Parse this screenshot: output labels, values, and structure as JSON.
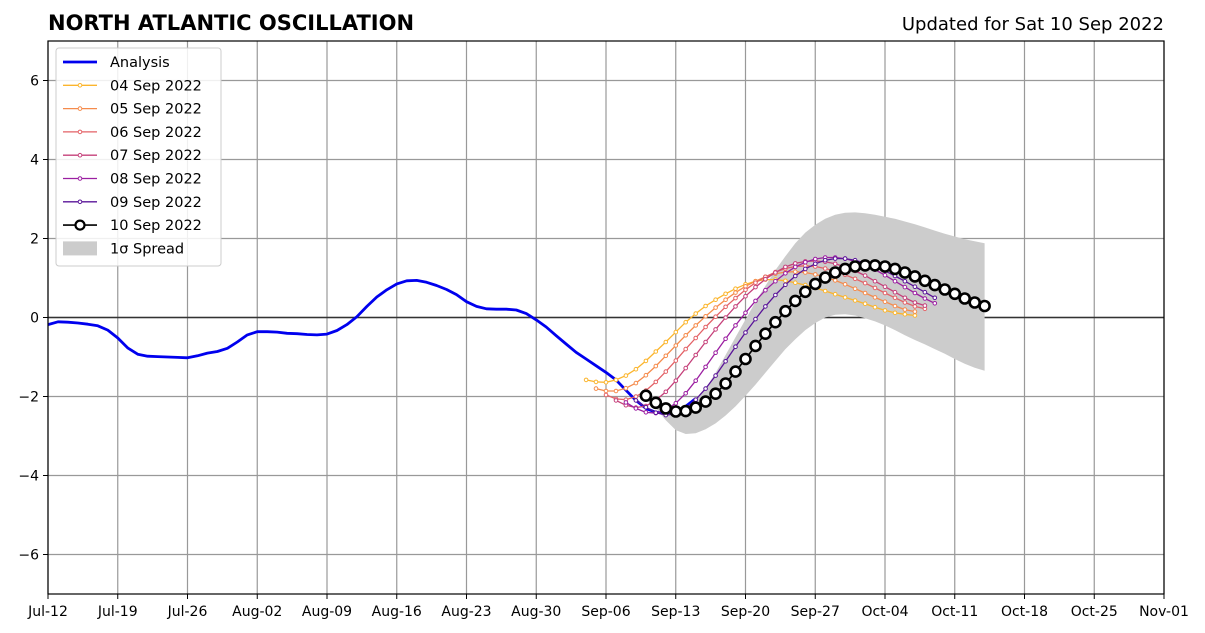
{
  "title": "NORTH ATLANTIC OSCILLATION",
  "updated": "Updated for Sat 10 Sep 2022",
  "chart_data": {
    "type": "line",
    "title": "NORTH ATLANTIC OSCILLATION",
    "xlabel": "",
    "ylabel": "",
    "x_axis": {
      "start": "2022-07-12",
      "end": "2022-11-01"
    },
    "ylim": [
      -7,
      7
    ],
    "grid": true,
    "legend_position": "top-left",
    "x_tick_labels": [
      "Jul-12",
      "Jul-19",
      "Jul-26",
      "Aug-02",
      "Aug-09",
      "Aug-16",
      "Aug-23",
      "Aug-30",
      "Sep-06",
      "Sep-13",
      "Sep-20",
      "Sep-27",
      "Oct-04",
      "Oct-11",
      "Oct-18",
      "Oct-25",
      "Nov-01"
    ],
    "y_ticks": [
      6,
      4,
      2,
      0,
      -2,
      -4,
      -6
    ],
    "y_tick_labels": [
      "6",
      "4",
      "2",
      "0",
      "−2",
      "−4",
      "−6"
    ],
    "analysis": {
      "name": "Analysis",
      "color": "#0000ee",
      "start": "2022-07-12",
      "values": [
        -0.18,
        -0.11,
        -0.12,
        -0.14,
        -0.17,
        -0.21,
        -0.32,
        -0.52,
        -0.77,
        -0.93,
        -0.98,
        -0.99,
        -1.0,
        -1.01,
        -1.02,
        -0.97,
        -0.9,
        -0.86,
        -0.78,
        -0.62,
        -0.44,
        -0.36,
        -0.36,
        -0.37,
        -0.4,
        -0.41,
        -0.43,
        -0.44,
        -0.42,
        -0.33,
        -0.18,
        0.02,
        0.28,
        0.52,
        0.7,
        0.85,
        0.93,
        0.94,
        0.89,
        0.81,
        0.71,
        0.58,
        0.4,
        0.28,
        0.22,
        0.21,
        0.21,
        0.19,
        0.1,
        -0.06,
        -0.24,
        -0.46,
        -0.67,
        -0.88,
        -1.05,
        -1.22,
        -1.39,
        -1.58,
        -1.84,
        -2.1,
        -2.3,
        -2.4,
        -2.42,
        -2.38,
        -2.25,
        -2.05
      ]
    },
    "forecasts": [
      {
        "name": "04 Sep 2022",
        "color": "#fbb52d",
        "start": "2022-09-04",
        "values": [
          -1.58,
          -1.63,
          -1.64,
          -1.58,
          -1.47,
          -1.31,
          -1.1,
          -0.86,
          -0.62,
          -0.37,
          -0.12,
          0.1,
          0.29,
          0.45,
          0.6,
          0.73,
          0.84,
          0.92,
          0.96,
          0.96,
          0.93,
          0.88,
          0.82,
          0.75,
          0.67,
          0.59,
          0.51,
          0.43,
          0.35,
          0.26,
          0.18,
          0.12,
          0.08,
          0.05
        ]
      },
      {
        "name": "05 Sep 2022",
        "color": "#f58b4c",
        "start": "2022-09-05",
        "values": [
          -1.8,
          -1.86,
          -1.86,
          -1.79,
          -1.66,
          -1.46,
          -1.23,
          -0.97,
          -0.71,
          -0.45,
          -0.2,
          0.03,
          0.25,
          0.45,
          0.63,
          0.79,
          0.92,
          1.03,
          1.11,
          1.15,
          1.16,
          1.14,
          1.09,
          1.02,
          0.94,
          0.84,
          0.73,
          0.62,
          0.51,
          0.4,
          0.29,
          0.2,
          0.15
        ]
      },
      {
        "name": "06 Sep 2022",
        "color": "#e36166",
        "start": "2022-09-06",
        "values": [
          -1.96,
          -2.06,
          -2.08,
          -2.0,
          -1.85,
          -1.63,
          -1.37,
          -1.09,
          -0.8,
          -0.52,
          -0.24,
          0.02,
          0.27,
          0.49,
          0.7,
          0.88,
          1.03,
          1.15,
          1.24,
          1.29,
          1.31,
          1.29,
          1.24,
          1.17,
          1.08,
          0.98,
          0.87,
          0.75,
          0.62,
          0.5,
          0.38,
          0.28,
          0.22
        ]
      },
      {
        "name": "07 Sep 2022",
        "color": "#c5407a",
        "start": "2022-09-07",
        "values": [
          -2.1,
          -2.22,
          -2.28,
          -2.24,
          -2.1,
          -1.88,
          -1.6,
          -1.28,
          -0.95,
          -0.62,
          -0.3,
          0.0,
          0.28,
          0.54,
          0.77,
          0.97,
          1.14,
          1.28,
          1.37,
          1.42,
          1.43,
          1.41,
          1.36,
          1.28,
          1.18,
          1.06,
          0.92,
          0.78,
          0.64,
          0.5,
          0.38,
          0.3
        ]
      },
      {
        "name": "08 Sep 2022",
        "color": "#9b1fa1",
        "start": "2022-09-08",
        "values": [
          -2.15,
          -2.3,
          -2.4,
          -2.42,
          -2.34,
          -2.17,
          -1.92,
          -1.6,
          -1.25,
          -0.89,
          -0.54,
          -0.2,
          0.12,
          0.42,
          0.69,
          0.92,
          1.12,
          1.28,
          1.4,
          1.48,
          1.52,
          1.52,
          1.49,
          1.42,
          1.33,
          1.21,
          1.07,
          0.92,
          0.77,
          0.62,
          0.48,
          0.36
        ]
      },
      {
        "name": "09 Sep 2022",
        "color": "#5a1499",
        "start": "2022-09-09",
        "values": [
          -2.1,
          -2.27,
          -2.41,
          -2.47,
          -2.44,
          -2.3,
          -2.08,
          -1.8,
          -1.47,
          -1.11,
          -0.74,
          -0.38,
          -0.04,
          0.28,
          0.57,
          0.83,
          1.05,
          1.23,
          1.36,
          1.45,
          1.49,
          1.49,
          1.45,
          1.38,
          1.29,
          1.18,
          1.05,
          0.92,
          0.78,
          0.64,
          0.5
        ]
      },
      {
        "name": "10 Sep 2022",
        "color": "#000000",
        "start": "2022-09-10",
        "values": [
          -1.98,
          -2.16,
          -2.3,
          -2.38,
          -2.37,
          -2.28,
          -2.13,
          -1.93,
          -1.67,
          -1.37,
          -1.05,
          -0.72,
          -0.41,
          -0.12,
          0.16,
          0.42,
          0.65,
          0.85,
          1.01,
          1.14,
          1.23,
          1.29,
          1.32,
          1.32,
          1.29,
          1.23,
          1.14,
          1.04,
          0.93,
          0.82,
          0.71,
          0.6,
          0.48,
          0.38,
          0.29
        ]
      }
    ],
    "spread": {
      "name": "1σ Spread",
      "color": "#cccccc",
      "start": "2022-09-10",
      "upper": [
        -1.95,
        -2.15,
        -2.3,
        -2.35,
        -2.3,
        -2.1,
        -1.8,
        -1.4,
        -0.95,
        -0.5,
        -0.05,
        0.4,
        0.8,
        1.2,
        1.55,
        1.88,
        2.15,
        2.35,
        2.5,
        2.6,
        2.65,
        2.66,
        2.64,
        2.6,
        2.55,
        2.5,
        2.43,
        2.36,
        2.28,
        2.2,
        2.12,
        2.05,
        1.98,
        1.93,
        1.88
      ],
      "lower": [
        -2.05,
        -2.3,
        -2.6,
        -2.85,
        -2.95,
        -2.93,
        -2.83,
        -2.68,
        -2.48,
        -2.25,
        -1.98,
        -1.7,
        -1.4,
        -1.1,
        -0.8,
        -0.55,
        -0.32,
        -0.14,
        0.0,
        0.07,
        0.08,
        0.05,
        -0.02,
        -0.1,
        -0.2,
        -0.32,
        -0.45,
        -0.57,
        -0.68,
        -0.8,
        -0.92,
        -1.05,
        -1.17,
        -1.27,
        -1.35
      ]
    }
  }
}
